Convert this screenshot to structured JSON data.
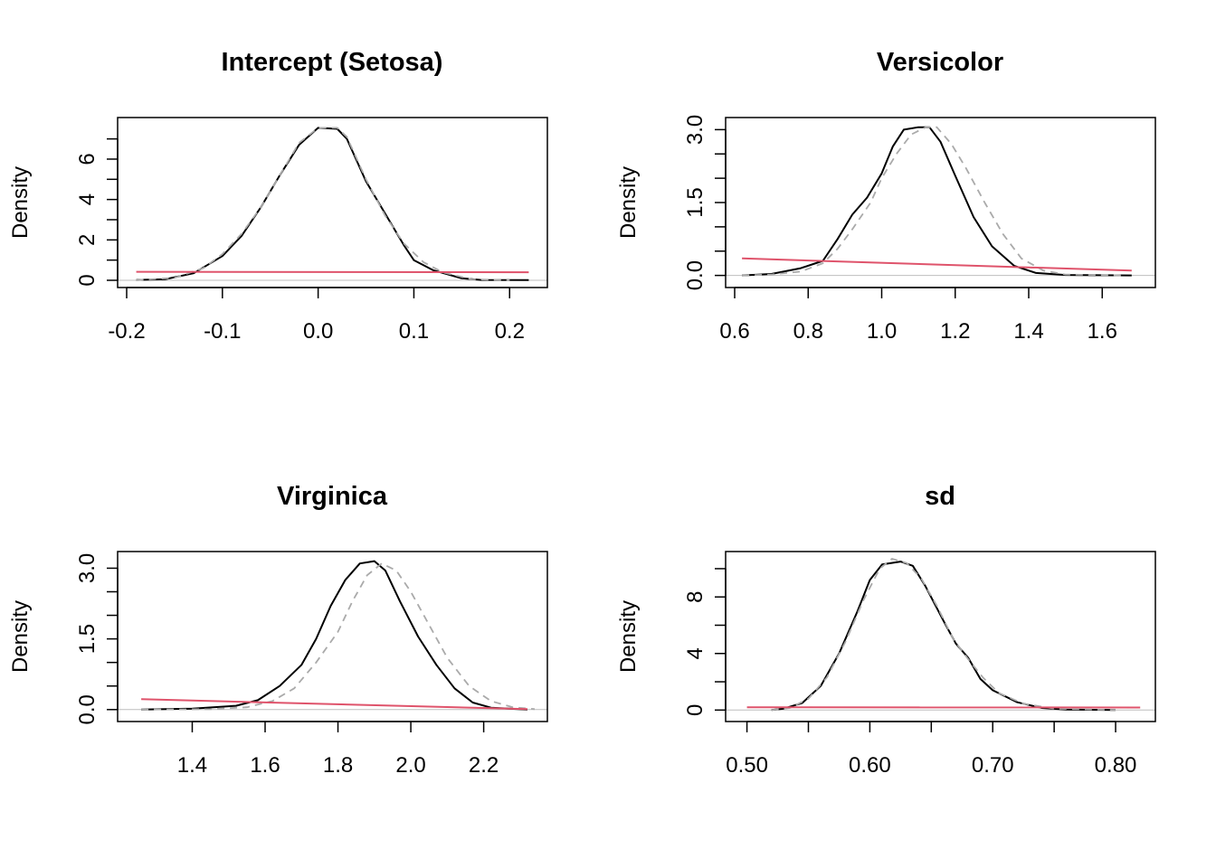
{
  "chart_data": [
    {
      "type": "line",
      "title": "Intercept (Setosa)",
      "xlabel": "",
      "ylabel": "Density",
      "xlim": [
        -0.2,
        0.23
      ],
      "ylim": [
        0,
        7.7
      ],
      "x_ticks": [
        -0.2,
        -0.1,
        0.0,
        0.1,
        0.2
      ],
      "x_tick_labels": [
        "-0.2",
        "-0.1",
        "0.0",
        "0.1",
        "0.2"
      ],
      "y_ticks": [
        0,
        1,
        2,
        3,
        4,
        5,
        6,
        7
      ],
      "y_tick_labels": [
        "0",
        "",
        "2",
        "",
        "4",
        "",
        "6",
        ""
      ],
      "grid": false,
      "series": [
        {
          "style": "solid",
          "color": "#000000",
          "points": [
            [
              -0.19,
              0.02
            ],
            [
              -0.16,
              0.05
            ],
            [
              -0.13,
              0.35
            ],
            [
              -0.1,
              1.2
            ],
            [
              -0.08,
              2.2
            ],
            [
              -0.06,
              3.6
            ],
            [
              -0.04,
              5.2
            ],
            [
              -0.02,
              6.7
            ],
            [
              0.0,
              7.55
            ],
            [
              0.02,
              7.5
            ],
            [
              0.03,
              7.0
            ],
            [
              0.05,
              4.9
            ],
            [
              0.07,
              3.3
            ],
            [
              0.09,
              1.7
            ],
            [
              0.1,
              1.0
            ],
            [
              0.12,
              0.5
            ],
            [
              0.15,
              0.1
            ],
            [
              0.17,
              0.02
            ],
            [
              0.22,
              0.01
            ]
          ]
        },
        {
          "style": "dashed",
          "color": "#aaaaaa",
          "points": [
            [
              -0.19,
              0.01
            ],
            [
              -0.15,
              0.12
            ],
            [
              -0.12,
              0.6
            ],
            [
              -0.1,
              1.3
            ],
            [
              -0.08,
              2.3
            ],
            [
              -0.06,
              3.6
            ],
            [
              -0.04,
              5.2
            ],
            [
              -0.02,
              6.8
            ],
            [
              0.0,
              7.55
            ],
            [
              0.02,
              7.55
            ],
            [
              0.03,
              7.1
            ],
            [
              0.05,
              5.0
            ],
            [
              0.07,
              3.2
            ],
            [
              0.09,
              1.8
            ],
            [
              0.11,
              0.9
            ],
            [
              0.13,
              0.4
            ],
            [
              0.16,
              0.05
            ],
            [
              0.2,
              0.01
            ]
          ]
        },
        {
          "style": "solid",
          "color": "#df536b",
          "points": [
            [
              -0.19,
              0.42
            ],
            [
              0.22,
              0.4
            ]
          ]
        }
      ]
    },
    {
      "type": "line",
      "title": "Versicolor",
      "xlabel": "",
      "ylabel": "Density",
      "xlim": [
        0.6,
        1.72
      ],
      "ylim": [
        -0.1,
        3.1
      ],
      "x_ticks": [
        0.6,
        0.8,
        1.0,
        1.2,
        1.4,
        1.6
      ],
      "x_tick_labels": [
        "0.6",
        "0.8",
        "1.0",
        "1.2",
        "1.4",
        "1.6"
      ],
      "y_ticks": [
        0.0,
        0.5,
        1.0,
        1.5,
        2.0,
        2.5,
        3.0
      ],
      "y_tick_labels": [
        "0.0",
        "",
        "",
        "1.5",
        "",
        "",
        "3.0"
      ],
      "grid": false,
      "series": [
        {
          "style": "solid",
          "color": "#000000",
          "points": [
            [
              0.62,
              0.0
            ],
            [
              0.7,
              0.03
            ],
            [
              0.78,
              0.15
            ],
            [
              0.84,
              0.3
            ],
            [
              0.88,
              0.75
            ],
            [
              0.92,
              1.25
            ],
            [
              0.96,
              1.6
            ],
            [
              1.0,
              2.1
            ],
            [
              1.03,
              2.65
            ],
            [
              1.06,
              3.0
            ],
            [
              1.1,
              3.05
            ],
            [
              1.13,
              3.05
            ],
            [
              1.16,
              2.75
            ],
            [
              1.2,
              2.05
            ],
            [
              1.25,
              1.2
            ],
            [
              1.3,
              0.6
            ],
            [
              1.36,
              0.2
            ],
            [
              1.42,
              0.05
            ],
            [
              1.5,
              0.01
            ],
            [
              1.68,
              0.0
            ]
          ]
        },
        {
          "style": "dashed",
          "color": "#aaaaaa",
          "points": [
            [
              0.62,
              0.0
            ],
            [
              0.7,
              0.02
            ],
            [
              0.78,
              0.08
            ],
            [
              0.84,
              0.25
            ],
            [
              0.88,
              0.55
            ],
            [
              0.92,
              0.95
            ],
            [
              0.97,
              1.5
            ],
            [
              1.0,
              2.0
            ],
            [
              1.04,
              2.5
            ],
            [
              1.08,
              2.9
            ],
            [
              1.12,
              3.05
            ],
            [
              1.15,
              3.05
            ],
            [
              1.19,
              2.7
            ],
            [
              1.23,
              2.2
            ],
            [
              1.28,
              1.5
            ],
            [
              1.33,
              0.85
            ],
            [
              1.38,
              0.35
            ],
            [
              1.44,
              0.1
            ],
            [
              1.5,
              0.02
            ],
            [
              1.66,
              0.0
            ]
          ]
        },
        {
          "style": "solid",
          "color": "#df536b",
          "points": [
            [
              0.62,
              0.35
            ],
            [
              1.68,
              0.1
            ]
          ]
        }
      ]
    },
    {
      "type": "line",
      "title": "Virginica",
      "xlabel": "",
      "ylabel": "Density",
      "xlim": [
        1.22,
        2.35
      ],
      "ylim": [
        -0.1,
        3.2
      ],
      "x_ticks": [
        1.4,
        1.6,
        1.8,
        2.0,
        2.2
      ],
      "x_tick_labels": [
        "1.4",
        "1.6",
        "1.8",
        "2.0",
        "2.2"
      ],
      "y_ticks": [
        0.0,
        0.5,
        1.0,
        1.5,
        2.0,
        2.5,
        3.0
      ],
      "y_tick_labels": [
        "0.0",
        "",
        "",
        "1.5",
        "",
        "",
        "3.0"
      ],
      "grid": false,
      "series": [
        {
          "style": "solid",
          "color": "#000000",
          "points": [
            [
              1.26,
              0.0
            ],
            [
              1.4,
              0.02
            ],
            [
              1.52,
              0.08
            ],
            [
              1.58,
              0.2
            ],
            [
              1.64,
              0.5
            ],
            [
              1.7,
              0.95
            ],
            [
              1.74,
              1.5
            ],
            [
              1.78,
              2.2
            ],
            [
              1.82,
              2.75
            ],
            [
              1.86,
              3.1
            ],
            [
              1.9,
              3.15
            ],
            [
              1.93,
              2.95
            ],
            [
              1.97,
              2.3
            ],
            [
              2.02,
              1.55
            ],
            [
              2.07,
              0.95
            ],
            [
              2.12,
              0.45
            ],
            [
              2.17,
              0.15
            ],
            [
              2.22,
              0.04
            ],
            [
              2.32,
              0.0
            ]
          ]
        },
        {
          "style": "dashed",
          "color": "#aaaaaa",
          "points": [
            [
              1.26,
              0.0
            ],
            [
              1.45,
              0.01
            ],
            [
              1.55,
              0.05
            ],
            [
              1.62,
              0.18
            ],
            [
              1.68,
              0.45
            ],
            [
              1.74,
              1.0
            ],
            [
              1.8,
              1.65
            ],
            [
              1.84,
              2.3
            ],
            [
              1.88,
              2.85
            ],
            [
              1.92,
              3.1
            ],
            [
              1.96,
              2.95
            ],
            [
              2.0,
              2.5
            ],
            [
              2.05,
              1.8
            ],
            [
              2.1,
              1.1
            ],
            [
              2.16,
              0.5
            ],
            [
              2.22,
              0.18
            ],
            [
              2.28,
              0.05
            ],
            [
              2.34,
              0.01
            ]
          ]
        },
        {
          "style": "solid",
          "color": "#df536b",
          "points": [
            [
              1.26,
              0.22
            ],
            [
              2.32,
              0.01
            ]
          ]
        }
      ]
    },
    {
      "type": "line",
      "title": "sd",
      "xlabel": "",
      "ylabel": "Density",
      "xlim": [
        0.49,
        0.825
      ],
      "ylim": [
        -0.3,
        10.7
      ],
      "x_ticks": [
        0.5,
        0.6,
        0.7,
        0.8
      ],
      "x_tick_labels": [
        "0.50",
        "0.60",
        "0.70",
        "0.80"
      ],
      "y_ticks": [
        0,
        2,
        4,
        6,
        8,
        10
      ],
      "y_tick_labels": [
        "0",
        "",
        "4",
        "",
        "8",
        ""
      ],
      "x_minor_ticks": [
        0.55,
        0.65,
        0.75
      ],
      "grid": false,
      "series": [
        {
          "style": "solid",
          "color": "#000000",
          "points": [
            [
              0.52,
              0.0
            ],
            [
              0.53,
              0.1
            ],
            [
              0.545,
              0.5
            ],
            [
              0.56,
              1.7
            ],
            [
              0.575,
              4.0
            ],
            [
              0.59,
              7.0
            ],
            [
              0.6,
              9.2
            ],
            [
              0.61,
              10.3
            ],
            [
              0.625,
              10.5
            ],
            [
              0.635,
              10.2
            ],
            [
              0.645,
              8.8
            ],
            [
              0.66,
              6.3
            ],
            [
              0.67,
              4.7
            ],
            [
              0.68,
              3.7
            ],
            [
              0.69,
              2.2
            ],
            [
              0.7,
              1.4
            ],
            [
              0.72,
              0.55
            ],
            [
              0.74,
              0.15
            ],
            [
              0.76,
              0.03
            ],
            [
              0.8,
              0.0
            ]
          ]
        },
        {
          "style": "dashed",
          "color": "#aaaaaa",
          "points": [
            [
              0.52,
              0.0
            ],
            [
              0.535,
              0.15
            ],
            [
              0.55,
              0.8
            ],
            [
              0.565,
              2.3
            ],
            [
              0.58,
              4.8
            ],
            [
              0.595,
              7.8
            ],
            [
              0.608,
              10.0
            ],
            [
              0.618,
              10.7
            ],
            [
              0.63,
              10.4
            ],
            [
              0.642,
              9.3
            ],
            [
              0.655,
              7.3
            ],
            [
              0.668,
              5.0
            ],
            [
              0.68,
              3.6
            ],
            [
              0.692,
              2.3
            ],
            [
              0.705,
              1.2
            ],
            [
              0.725,
              0.45
            ],
            [
              0.75,
              0.1
            ],
            [
              0.8,
              0.0
            ]
          ]
        },
        {
          "style": "solid",
          "color": "#df536b",
          "points": [
            [
              0.5,
              0.2
            ],
            [
              0.82,
              0.18
            ]
          ]
        }
      ]
    }
  ]
}
